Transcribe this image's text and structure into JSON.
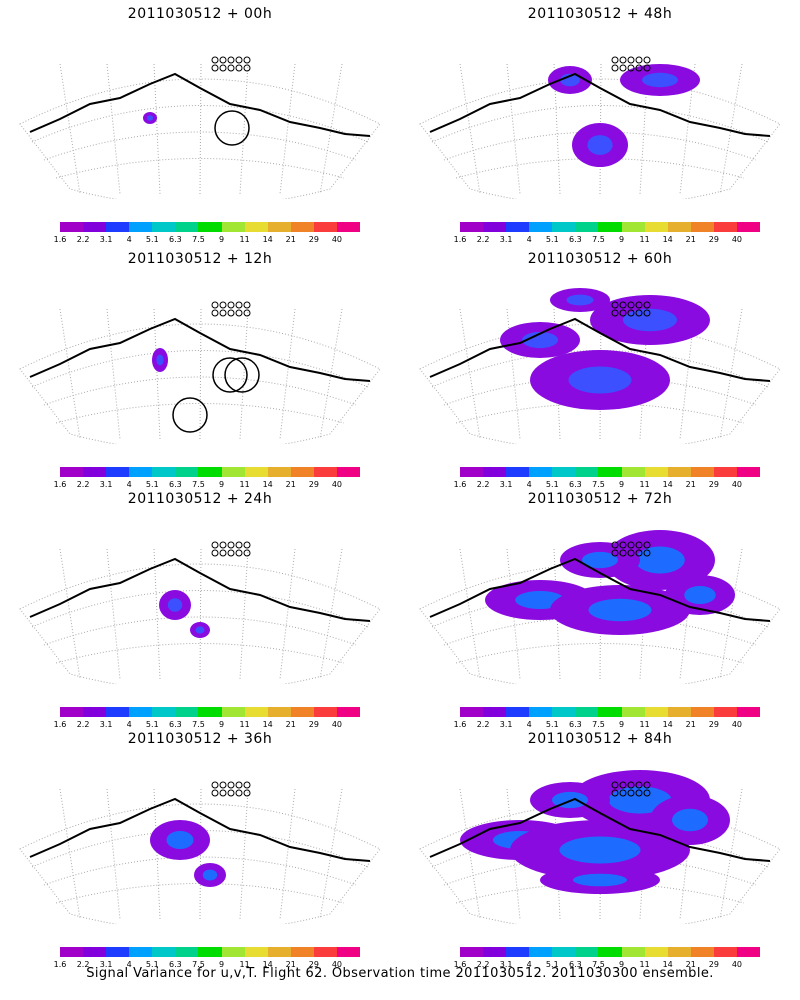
{
  "panels": [
    {
      "title": "2011030512 + 00h",
      "blobs": 1,
      "circles": 1
    },
    {
      "title": "2011030512 + 48h",
      "blobs": 3,
      "circles": 0
    },
    {
      "title": "2011030512 + 12h",
      "blobs": 1,
      "circles": 3
    },
    {
      "title": "2011030512 + 60h",
      "blobs": 4,
      "circles": 0
    },
    {
      "title": "2011030512 + 24h",
      "blobs": 2,
      "circles": 0
    },
    {
      "title": "2011030512 + 72h",
      "blobs": 5,
      "circles": 0
    },
    {
      "title": "2011030512 + 36h",
      "blobs": 2,
      "circles": 0
    },
    {
      "title": "2011030512 + 84h",
      "blobs": 6,
      "circles": 0
    }
  ],
  "colorbar": {
    "colors": [
      "#a000c8",
      "#8200dc",
      "#1e3cff",
      "#00a0ff",
      "#00c8c8",
      "#00d28c",
      "#00dc00",
      "#a0e632",
      "#e6dc32",
      "#e6af2d",
      "#f08228",
      "#fa3c3c",
      "#f00082"
    ],
    "labels": [
      "1.6",
      "2.2",
      "3.1",
      "4",
      "5.1",
      "6.3",
      "7.5",
      "9",
      "11",
      "14",
      "21",
      "29",
      "40"
    ]
  },
  "footer": "Signal Variance for u,v,T. Flight 62. Observation time 2011030512. 2011030300 ensemble."
}
